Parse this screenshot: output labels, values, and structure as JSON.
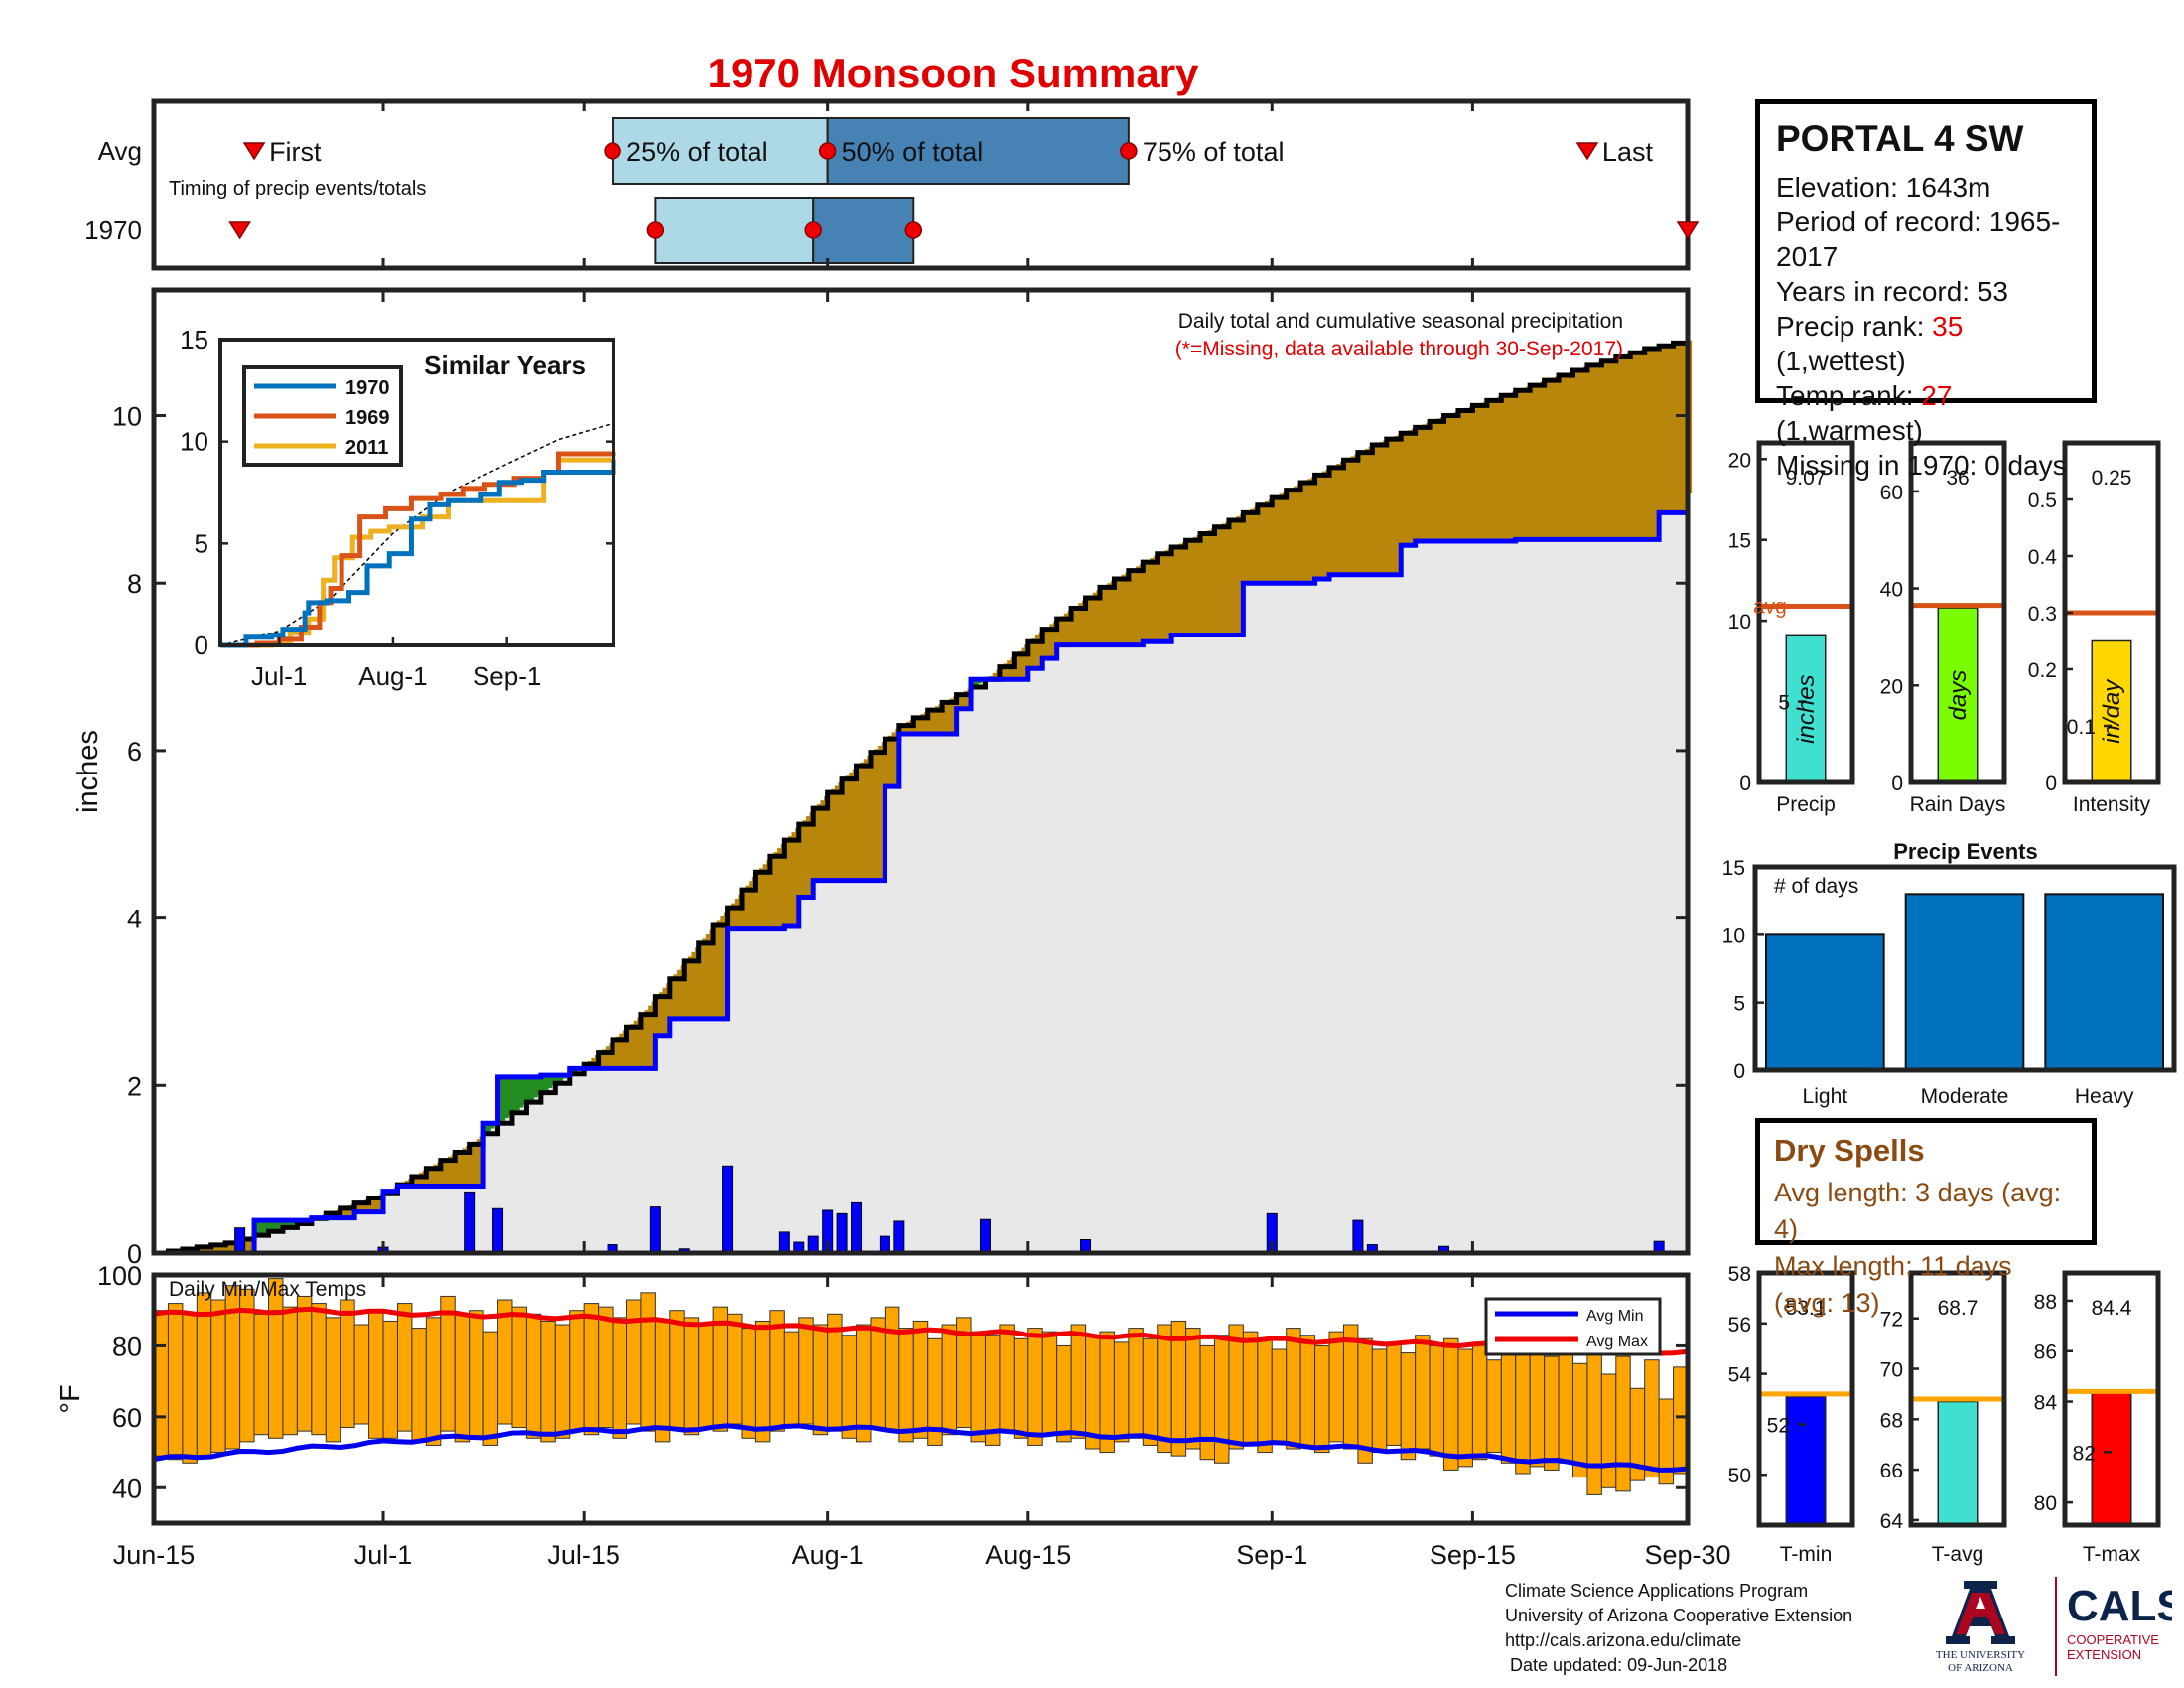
{
  "title": "1970 Monsoon Summary",
  "timing": {
    "row_labels": [
      "Avg",
      "1970"
    ],
    "caption": "Timing of precip events/totals",
    "markers": {
      "first": "First",
      "q25": "25% of total",
      "q50": "50% of total",
      "q75": "75% of total",
      "last": "Last"
    },
    "avg_days": {
      "first": 7,
      "q25": 32,
      "q50": 47,
      "q75": 68,
      "last": 100
    },
    "year_days": {
      "first": 6,
      "q25": 35,
      "q50": 46,
      "q75": 53,
      "last": 107
    }
  },
  "station": {
    "name": "PORTAL 4 SW",
    "elevation": "Elevation: 1643m",
    "period": "Period of record: 1965-2017",
    "years": "Years in record: 53",
    "precip_rank_label": "Precip rank: ",
    "precip_rank": "35",
    "precip_rank_note": " (1,wettest)",
    "temp_rank_label": "Temp rank: ",
    "temp_rank": "27",
    "temp_rank_note": " (1,warmest)",
    "missing": "Missing in 1970: 0 days"
  },
  "dry_spells": {
    "title": "Dry Spells",
    "avg_length": "Avg length: 3 days (avg: 4)",
    "max_length": "Max length: 11 days (avg: 13)"
  },
  "credits": {
    "line1": "Climate Science Applications Program",
    "line2": "University of Arizona Cooperative Extension",
    "line3": "http://cals.arizona.edu/climate",
    "line4": "Date updated: 09-Jun-2018",
    "ua_logo_text": "THE UNIVERSITY OF ARIZONA",
    "cals_logo_text": "CALS",
    "cals_sub": "COOPERATIVE EXTENSION"
  },
  "colors": {
    "title": "#e00000",
    "q_light": "#add8e6",
    "q_dark": "#4682b4",
    "gold": "#b8860b",
    "green": "#228b22",
    "blue": "#0000ff",
    "orange": "#ffa500",
    "fill": "#e8e8e8",
    "avgline": "#d95319"
  },
  "chart_data": [
    {
      "type": "area",
      "id": "cumulative",
      "title": "Daily total and cumulative seasonal precipitation",
      "subtitle": "(*=Missing, data available through 30-Sep-2017)",
      "ylabel": "inches",
      "ylim": [
        0,
        11.5
      ],
      "yticks": [
        0,
        2,
        4,
        6,
        8,
        10
      ],
      "xlim_days": [
        0,
        107
      ],
      "xtick_labels": [
        "Jun-15",
        "Jul-1",
        "Jul-15",
        "Aug-1",
        "Aug-15",
        "Sep-1",
        "Sep-15",
        "Sep-30"
      ],
      "xtick_days": [
        0,
        16,
        30,
        47,
        61,
        78,
        92,
        107
      ],
      "avg_cumulative": {
        "days": [
          0,
          5,
          10,
          16,
          22,
          26,
          30,
          34,
          38,
          42,
          47,
          52,
          58,
          62,
          66,
          70,
          75,
          80,
          85,
          90,
          95,
          100,
          104,
          107
        ],
        "values": [
          0,
          0.12,
          0.35,
          0.72,
          1.3,
          1.8,
          2.25,
          2.85,
          3.7,
          4.55,
          5.5,
          6.3,
          6.85,
          7.45,
          7.95,
          8.35,
          8.75,
          9.2,
          9.65,
          10.0,
          10.3,
          10.6,
          10.8,
          10.9
        ]
      },
      "year_cumulative": {
        "days": [
          0,
          6,
          7,
          11,
          14,
          16,
          17,
          20,
          23,
          24,
          25,
          27,
          29,
          34,
          35,
          36,
          39,
          40,
          43,
          44,
          45,
          46,
          47,
          51,
          52,
          54,
          55,
          56,
          57,
          60,
          61,
          62,
          63,
          69,
          70,
          71,
          75,
          76,
          78,
          81,
          82,
          86,
          87,
          88,
          89,
          94,
          95,
          104,
          105,
          107
        ],
        "values": [
          0,
          0,
          0.39,
          0.42,
          0.49,
          0.74,
          0.8,
          0.8,
          1.55,
          2.1,
          2.1,
          2.12,
          2.2,
          2.2,
          2.6,
          2.8,
          2.8,
          3.87,
          3.87,
          3.9,
          4.25,
          4.45,
          4.45,
          5.57,
          6.2,
          6.2,
          6.2,
          6.5,
          6.85,
          6.85,
          6.98,
          7.1,
          7.26,
          7.3,
          7.3,
          7.38,
          7.38,
          8.0,
          8.0,
          8.05,
          8.1,
          8.1,
          8.45,
          8.5,
          8.5,
          8.5,
          8.52,
          8.52,
          8.84,
          9.07
        ]
      },
      "daily_bars": {
        "days": [
          6,
          16,
          22,
          24,
          32,
          35,
          37,
          40,
          44,
          45,
          46,
          47,
          48,
          49,
          51,
          52,
          58,
          65,
          78,
          84,
          85,
          90,
          105
        ],
        "values": [
          0.3,
          0.07,
          0.73,
          0.53,
          0.1,
          0.55,
          0.05,
          1.04,
          0.25,
          0.13,
          0.2,
          0.51,
          0.47,
          0.6,
          0.2,
          0.38,
          0.4,
          0.16,
          0.47,
          0.39,
          0.1,
          0.08,
          0.14
        ]
      }
    },
    {
      "type": "line",
      "id": "similar-years",
      "title": "Similar Years",
      "ylim": [
        0,
        15
      ],
      "yticks": [
        0,
        5,
        10,
        15
      ],
      "xtick_labels": [
        "Jul-1",
        "Aug-1",
        "Sep-1"
      ],
      "xtick_days": [
        16,
        47,
        78
      ],
      "series": [
        {
          "name": "1970",
          "color": "#0072bd",
          "days": [
            0,
            7,
            14,
            17,
            23,
            24,
            29,
            35,
            40,
            46,
            52,
            57,
            62,
            71,
            76,
            82,
            88,
            95,
            107
          ],
          "values": [
            0,
            0.4,
            0.5,
            0.8,
            1.6,
            2.1,
            2.2,
            2.6,
            3.9,
            4.5,
            6.2,
            6.9,
            7.1,
            7.4,
            8.0,
            8.1,
            8.5,
            8.5,
            9.1
          ]
        },
        {
          "name": "1969",
          "color": "#d95319",
          "days": [
            0,
            10,
            16,
            22,
            27,
            30,
            33,
            38,
            45,
            52,
            60,
            66,
            72,
            80,
            88,
            92,
            107
          ],
          "values": [
            0,
            0.1,
            0.3,
            0.9,
            2.1,
            2.8,
            4.4,
            6.3,
            6.7,
            7.2,
            7.4,
            7.7,
            7.9,
            8.2,
            8.5,
            9.4,
            9.5
          ]
        },
        {
          "name": "2011",
          "color": "#edb120",
          "days": [
            0,
            14,
            19,
            24,
            28,
            31,
            36,
            41,
            46,
            55,
            62,
            72,
            84,
            88,
            92,
            107
          ],
          "values": [
            0,
            0.1,
            0.6,
            1.3,
            3.2,
            4.3,
            5.3,
            5.6,
            5.8,
            6.3,
            7.1,
            7.1,
            7.1,
            8.5,
            9.1,
            9.2
          ]
        }
      ],
      "avg": {
        "days": [
          0,
          16,
          30,
          47,
          62,
          78,
          92,
          107
        ],
        "values": [
          0,
          0.7,
          2.3,
          5.5,
          7.5,
          8.9,
          10.1,
          10.9
        ]
      }
    },
    {
      "type": "bar",
      "id": "daily-temps",
      "title": "Daily Min/Max Temps",
      "ylabel": "°F",
      "ylim": [
        30,
        100
      ],
      "yticks": [
        40,
        60,
        80,
        100
      ],
      "legend": [
        "Avg Min",
        "Avg Max"
      ],
      "min_values": [
        49,
        48,
        47,
        49,
        50,
        51,
        53,
        55,
        54,
        55,
        56,
        55,
        53,
        57,
        58,
        54,
        54,
        56,
        53,
        52,
        56,
        53,
        54,
        52,
        58,
        57,
        54,
        53,
        54,
        56,
        55,
        57,
        54,
        58,
        56,
        53,
        57,
        55,
        57,
        56,
        58,
        54,
        53,
        56,
        57,
        58,
        55,
        56,
        54,
        53,
        57,
        56,
        53,
        54,
        52,
        55,
        57,
        53,
        52,
        56,
        54,
        52,
        55,
        53,
        54,
        51,
        50,
        53,
        54,
        52,
        50,
        49,
        51,
        48,
        47,
        51,
        52,
        50,
        53,
        51,
        52,
        50,
        53,
        51,
        47,
        50,
        52,
        48,
        51,
        49,
        45,
        46,
        48,
        50,
        47,
        44,
        46,
        45,
        47,
        43,
        38,
        40,
        39,
        42,
        43,
        41,
        44
      ],
      "max_values": [
        90,
        92,
        89,
        95,
        93,
        97,
        96,
        89,
        99,
        91,
        94,
        92,
        88,
        93,
        86,
        90,
        87,
        92,
        85,
        88,
        94,
        89,
        90,
        84,
        93,
        91,
        89,
        87,
        86,
        90,
        92,
        91,
        88,
        93,
        95,
        87,
        90,
        88,
        86,
        91,
        89,
        85,
        87,
        90,
        84,
        88,
        86,
        89,
        83,
        86,
        88,
        91,
        85,
        87,
        82,
        86,
        88,
        84,
        83,
        86,
        82,
        85,
        84,
        80,
        86,
        83,
        84,
        81,
        85,
        82,
        86,
        87,
        85,
        80,
        83,
        86,
        84,
        82,
        79,
        85,
        83,
        80,
        84,
        86,
        82,
        79,
        81,
        78,
        83,
        80,
        82,
        79,
        81,
        76,
        80,
        78,
        82,
        77,
        79,
        75,
        80,
        72,
        77,
        68,
        76,
        65,
        74
      ],
      "avg_min": {
        "days": [
          0,
          10,
          20,
          30,
          40,
          47,
          55,
          65,
          75,
          85,
          95,
          107
        ],
        "values": [
          48,
          51,
          54,
          56,
          57,
          57,
          56,
          55,
          53,
          51,
          48,
          45
        ]
      },
      "avg_max": {
        "days": [
          0,
          10,
          20,
          30,
          40,
          47,
          55,
          65,
          75,
          85,
          95,
          107
        ],
        "values": [
          89,
          90,
          89,
          88,
          86,
          85,
          84,
          83,
          82,
          81,
          80,
          78
        ]
      }
    },
    {
      "type": "bar",
      "id": "precip-summary",
      "panels": [
        {
          "category": "Precip",
          "bar_label": "inches",
          "value": 9.07,
          "value_text": "9.07",
          "avg": 10.9,
          "avg_text": "avg",
          "ylim": [
            0,
            21
          ],
          "yticks": [
            0,
            5,
            10,
            15,
            20
          ],
          "color": "#40e0d0"
        },
        {
          "category": "Rain Days",
          "bar_label": "days",
          "value": 36,
          "value_text": "36",
          "avg": 36.5,
          "ylim": [
            0,
            70
          ],
          "yticks": [
            0,
            20,
            40,
            60
          ],
          "color": "#7cfc00"
        },
        {
          "category": "Intensity",
          "bar_label": "in/day",
          "value": 0.25,
          "value_text": "0.25",
          "avg": 0.3,
          "ylim": [
            0,
            0.6
          ],
          "yticks": [
            0,
            0.1,
            0.2,
            0.3,
            0.4,
            0.5
          ],
          "color": "#ffd700"
        }
      ]
    },
    {
      "type": "bar",
      "id": "precip-events",
      "title": "Precip Events",
      "ylabel_inner": "# of days",
      "categories": [
        "Light",
        "Moderate",
        "Heavy"
      ],
      "values": [
        10,
        13,
        13
      ],
      "ylim": [
        0,
        15
      ],
      "yticks": [
        0,
        5,
        10,
        15
      ]
    },
    {
      "type": "bar",
      "id": "temp-summary",
      "panels": [
        {
          "category": "T-min",
          "value": 53.1,
          "value_text": "53.1",
          "avg": 53.2,
          "ylim": [
            48,
            58
          ],
          "yticks": [
            50,
            52,
            54,
            56,
            58
          ],
          "color": "#0000ff"
        },
        {
          "category": "T-avg",
          "value": 68.7,
          "value_text": "68.7",
          "avg": 68.8,
          "ylim": [
            63.8,
            73.8
          ],
          "yticks": [
            64,
            66,
            68,
            70,
            72
          ],
          "color": "#40e0d0"
        },
        {
          "category": "T-max",
          "value": 84.4,
          "value_text": "84.4",
          "avg": 84.4,
          "ylim": [
            79.1,
            89.1
          ],
          "yticks": [
            80,
            82,
            84,
            86,
            88
          ],
          "color": "#ff0000"
        }
      ]
    }
  ]
}
